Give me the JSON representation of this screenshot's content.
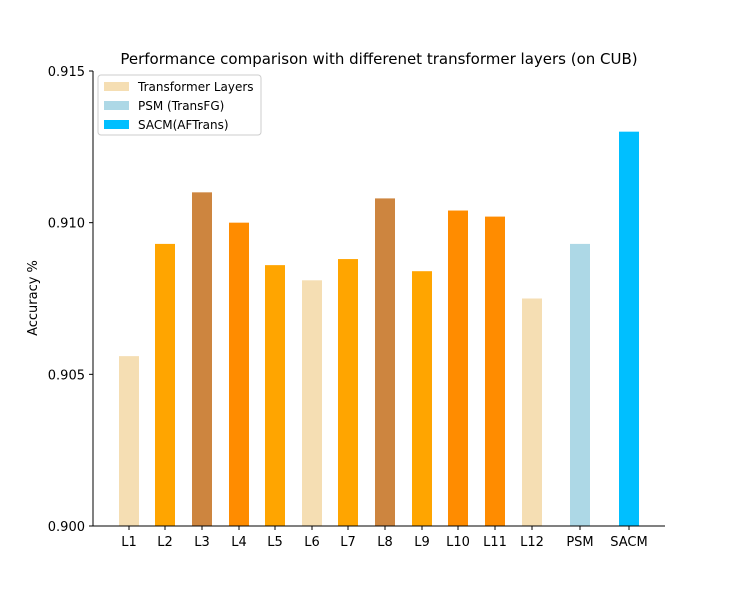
{
  "chart_data": {
    "type": "bar",
    "title": "Performance comparison with differenet transformer layers (on CUB)",
    "xlabel": "",
    "ylabel": "Accuracy %",
    "ylim": [
      0.9,
      0.915
    ],
    "yticks": [
      "0.900",
      "0.905",
      "0.910",
      "0.915"
    ],
    "ytick_values": [
      0.9,
      0.905,
      0.91,
      0.915
    ],
    "categories": [
      "L1",
      "L2",
      "L3",
      "L4",
      "L5",
      "L6",
      "L7",
      "L8",
      "L9",
      "L10",
      "L11",
      "L12",
      "PSM",
      "SACM"
    ],
    "values": [
      0.9056,
      0.9093,
      0.911,
      0.91,
      0.9086,
      0.9081,
      0.9088,
      0.9108,
      0.9084,
      0.9104,
      0.9102,
      0.9075,
      0.9093,
      0.913
    ],
    "colors": [
      "#f5deb3",
      "#ffa500",
      "#cd853f",
      "#ff8c00",
      "#ffa500",
      "#f5deb3",
      "#ffa500",
      "#cd853f",
      "#ffa500",
      "#ff8c00",
      "#ff8c00",
      "#f5deb3",
      "#add8e6",
      "#00bfff"
    ],
    "legend": {
      "placement": "top-left",
      "entries": [
        {
          "label": "Transformer Layers",
          "color": "#f5deb3"
        },
        {
          "label": "PSM (TransFG)",
          "color": "#add8e6"
        },
        {
          "label": "SACM(AFTrans)",
          "color": "#00bfff"
        }
      ]
    },
    "grid": false
  }
}
